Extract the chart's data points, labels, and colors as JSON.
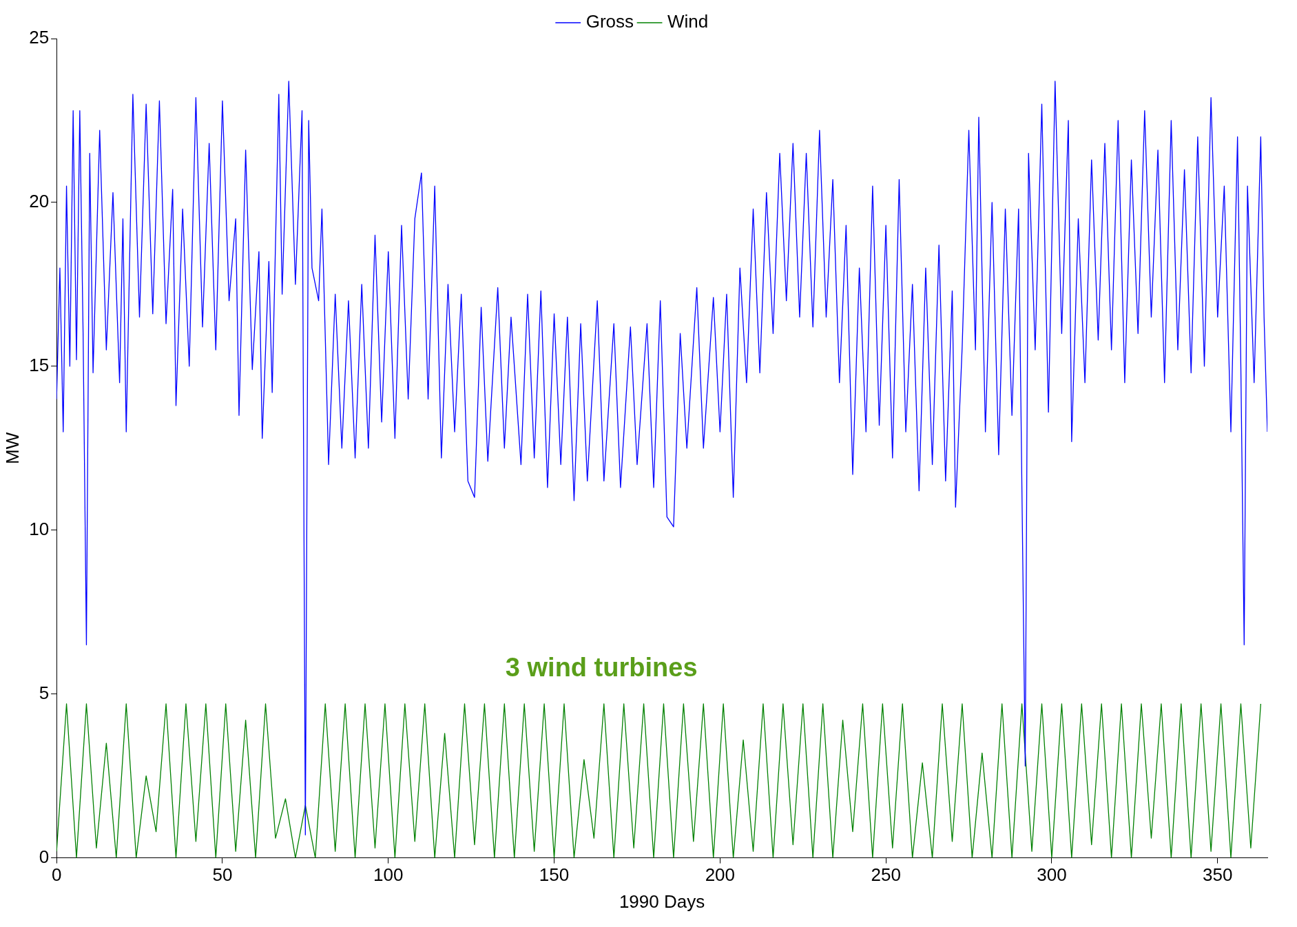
{
  "chart_data": {
    "type": "line",
    "xlabel": "1990 Days",
    "ylabel": "MW",
    "xlim": [
      0,
      365
    ],
    "xticks": [
      0,
      50,
      100,
      150,
      200,
      250,
      300,
      350
    ],
    "ylim": [
      0,
      25
    ],
    "yticks": [
      0,
      5,
      10,
      15,
      20,
      25
    ],
    "grid": false,
    "legend": "top",
    "marker": "none",
    "line_style": "solid",
    "annotations": [
      "3 wind turbines"
    ],
    "series": [
      {
        "name": "Gross",
        "color": "#0000ff",
        "x": [
          0,
          1,
          2,
          3,
          4,
          5,
          6,
          7,
          8,
          9,
          10,
          11,
          13,
          15,
          17,
          19,
          20,
          21,
          23,
          25,
          27,
          29,
          31,
          33,
          35,
          36,
          38,
          40,
          42,
          44,
          46,
          48,
          50,
          52,
          54,
          55,
          57,
          59,
          61,
          62,
          64,
          65,
          67,
          68,
          70,
          72,
          74,
          75,
          76,
          77,
          79,
          80,
          82,
          84,
          86,
          88,
          90,
          92,
          94,
          96,
          98,
          100,
          102,
          104,
          106,
          108,
          110,
          112,
          114,
          116,
          118,
          120,
          122,
          124,
          126,
          128,
          130,
          133,
          135,
          137,
          140,
          142,
          144,
          146,
          148,
          150,
          152,
          154,
          156,
          158,
          160,
          163,
          165,
          168,
          170,
          173,
          175,
          178,
          180,
          182,
          184,
          186,
          188,
          190,
          193,
          195,
          198,
          200,
          202,
          204,
          206,
          208,
          210,
          212,
          214,
          216,
          218,
          220,
          222,
          224,
          226,
          228,
          230,
          232,
          234,
          236,
          238,
          240,
          242,
          244,
          246,
          248,
          250,
          252,
          254,
          256,
          258,
          260,
          262,
          264,
          266,
          268,
          270,
          271,
          273,
          275,
          277,
          278,
          280,
          282,
          284,
          286,
          288,
          290,
          292,
          293,
          295,
          297,
          299,
          301,
          303,
          305,
          306,
          308,
          310,
          312,
          314,
          316,
          318,
          320,
          322,
          324,
          326,
          328,
          330,
          332,
          334,
          336,
          338,
          340,
          342,
          344,
          346,
          348,
          350,
          352,
          354,
          356,
          357,
          358,
          359,
          361,
          363,
          364,
          365
        ],
        "values": [
          14,
          18,
          13,
          20.5,
          15,
          22.8,
          15.2,
          22.8,
          16,
          6.5,
          21.5,
          14.8,
          22.2,
          15.5,
          20.3,
          14.5,
          19.5,
          13,
          23.3,
          16.5,
          23,
          16.6,
          23.1,
          16.3,
          20.4,
          13.8,
          19.8,
          15,
          23.2,
          16.2,
          21.8,
          15.5,
          23.1,
          17,
          19.5,
          13.5,
          21.6,
          14.9,
          18.5,
          12.8,
          18.2,
          14.2,
          23.3,
          17.2,
          23.7,
          17.5,
          22.8,
          0.7,
          22.5,
          18,
          17,
          19.8,
          12,
          17.2,
          12.5,
          17,
          12.2,
          17.5,
          12.5,
          19,
          13.3,
          18.5,
          12.8,
          19.3,
          14,
          19.5,
          20.9,
          14,
          20.5,
          12.2,
          17.5,
          13,
          17.2,
          11.5,
          11,
          16.8,
          12.1,
          17.4,
          12.5,
          16.5,
          12,
          17.2,
          12.2,
          17.3,
          11.3,
          16.6,
          12,
          16.5,
          10.9,
          16.3,
          11.5,
          17,
          11.5,
          16.3,
          11.3,
          16.2,
          12,
          16.3,
          11.3,
          17,
          10.4,
          10.1,
          16,
          12.5,
          17.4,
          12.5,
          17.1,
          13,
          17.2,
          11,
          18,
          14.5,
          19.8,
          14.8,
          20.3,
          16,
          21.5,
          17,
          21.8,
          16.5,
          21.5,
          16.2,
          22.2,
          16.5,
          20.7,
          14.5,
          19.3,
          11.7,
          18,
          13,
          20.5,
          13.2,
          19.3,
          12.2,
          20.7,
          13,
          17.5,
          11.2,
          18,
          12,
          18.7,
          11.5,
          17.3,
          10.7,
          15.6,
          22.2,
          15.5,
          22.6,
          13,
          20,
          12.3,
          19.8,
          13.5,
          19.8,
          2.8,
          21.5,
          15.5,
          23,
          13.6,
          23.7,
          16,
          22.5,
          12.7,
          19.5,
          14.5,
          21.3,
          15.8,
          21.8,
          15.5,
          22.5,
          14.5,
          21.3,
          16,
          22.8,
          16.5,
          21.6,
          14.5,
          22.5,
          15.5,
          21,
          14.8,
          22,
          15,
          23.2,
          16.5,
          20.5,
          13,
          22,
          15,
          6.5,
          20.5,
          14.5,
          22,
          16.5,
          13
        ]
      },
      {
        "name": "Wind",
        "color": "#008000",
        "x": [
          0,
          3,
          6,
          9,
          12,
          15,
          18,
          21,
          24,
          27,
          30,
          33,
          36,
          39,
          42,
          45,
          48,
          51,
          54,
          57,
          60,
          63,
          66,
          69,
          72,
          75,
          78,
          81,
          84,
          87,
          90,
          93,
          96,
          99,
          102,
          105,
          108,
          111,
          114,
          117,
          120,
          123,
          126,
          129,
          132,
          135,
          138,
          141,
          144,
          147,
          150,
          153,
          156,
          159,
          162,
          165,
          168,
          171,
          174,
          177,
          180,
          183,
          186,
          189,
          192,
          195,
          198,
          201,
          204,
          207,
          210,
          213,
          216,
          219,
          222,
          225,
          228,
          231,
          234,
          237,
          240,
          243,
          246,
          249,
          252,
          255,
          258,
          261,
          264,
          267,
          270,
          273,
          276,
          279,
          282,
          285,
          288,
          291,
          294,
          297,
          300,
          303,
          306,
          309,
          312,
          315,
          318,
          321,
          324,
          327,
          330,
          333,
          336,
          339,
          342,
          345,
          348,
          351,
          354,
          357,
          360,
          363
        ],
        "values": [
          0.2,
          4.7,
          0,
          4.7,
          0.3,
          3.5,
          0,
          4.7,
          0,
          2.5,
          0.8,
          4.7,
          0,
          4.7,
          0.5,
          4.7,
          0,
          4.7,
          0.2,
          4.2,
          0,
          4.7,
          0.6,
          1.8,
          0,
          1.6,
          0,
          4.7,
          0.2,
          4.7,
          0,
          4.7,
          0.3,
          4.7,
          0,
          4.7,
          0.5,
          4.7,
          0,
          3.8,
          0,
          4.7,
          0.4,
          4.7,
          0,
          4.7,
          0,
          4.7,
          0.2,
          4.7,
          0,
          4.7,
          0,
          3,
          0.6,
          4.7,
          0,
          4.7,
          0.3,
          4.7,
          0,
          4.7,
          0,
          4.7,
          0.5,
          4.7,
          0,
          4.7,
          0,
          3.6,
          0.2,
          4.7,
          0,
          4.7,
          0.4,
          4.7,
          0,
          4.7,
          0,
          4.2,
          0.8,
          4.7,
          0,
          4.7,
          0.3,
          4.7,
          0,
          2.9,
          0,
          4.7,
          0.5,
          4.7,
          0,
          3.2,
          0,
          4.7,
          0,
          4.7,
          0.2,
          4.7,
          0,
          4.7,
          0,
          4.7,
          0.4,
          4.7,
          0,
          4.7,
          0,
          4.7,
          0.6,
          4.7,
          0,
          4.7,
          0,
          4.7,
          0.2,
          4.7,
          0,
          4.7,
          0.3,
          4.7
        ]
      }
    ]
  }
}
